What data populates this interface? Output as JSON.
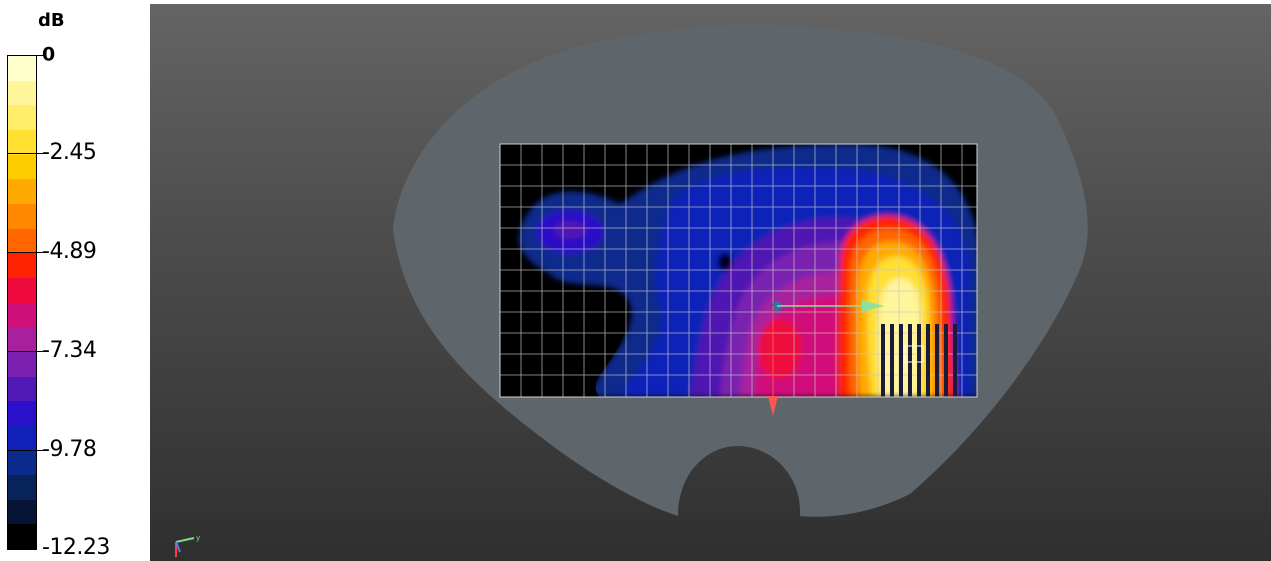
{
  "legend": {
    "unit": "dB",
    "ticks": [
      {
        "label": "0",
        "value": 0
      },
      {
        "label": "-2.45",
        "value": -2.45
      },
      {
        "label": "-4.89",
        "value": -4.89
      },
      {
        "label": "-7.34",
        "value": -7.34
      },
      {
        "label": "-9.78",
        "value": -9.78
      },
      {
        "label": "-12.23",
        "value": -12.23
      }
    ],
    "range": [
      -12.23,
      0
    ],
    "colors": [
      "#ffffcc",
      "#fff59a",
      "#ffee6a",
      "#ffe033",
      "#ffcc00",
      "#ffaa00",
      "#ff8800",
      "#ff6600",
      "#ff2200",
      "#ee0a3c",
      "#d0107a",
      "#a8209e",
      "#7a20b0",
      "#5018b4",
      "#2a10c8",
      "#1020b8",
      "#0a2a8c",
      "#08225a",
      "#061535",
      "#000000"
    ]
  },
  "viewport": {
    "axis_triad_label": "y",
    "colors": {
      "phantom_fill": "#5e666c",
      "grid_lines": "#c8c8c8",
      "measurement_area_background": "#000000",
      "source_arrow": "#8ee2a0",
      "source_arrow_down": "#ff5555",
      "antenna_bars": "#1a1a3a"
    }
  }
}
